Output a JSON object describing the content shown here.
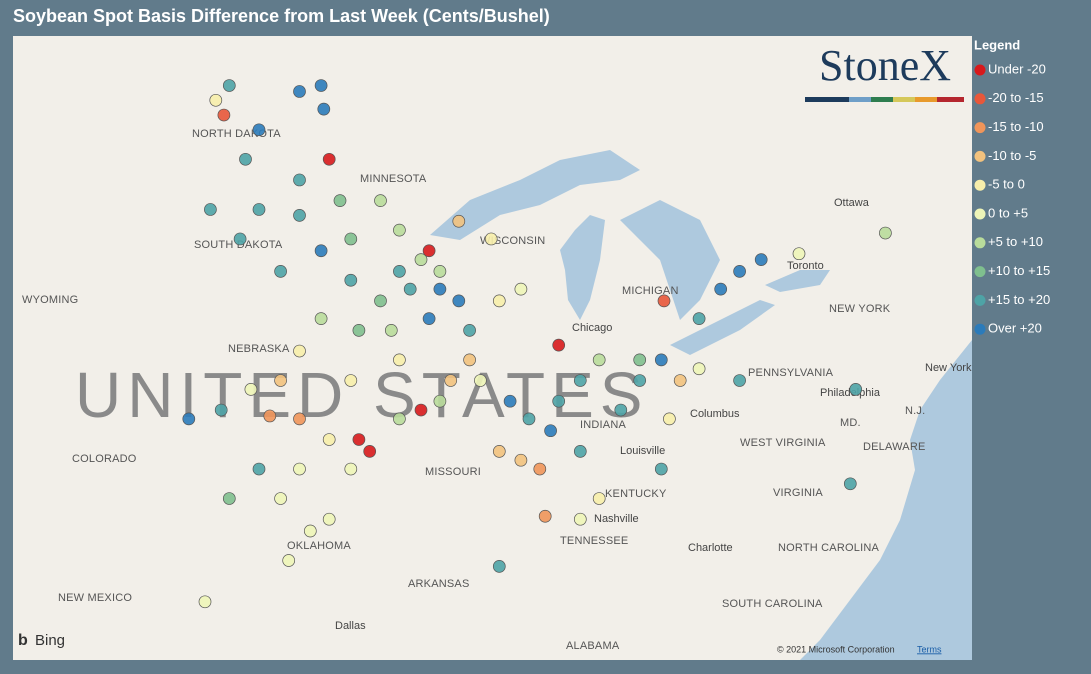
{
  "header": {
    "title": "Soybean Spot Basis Difference from Last Week (Cents/Bushel)"
  },
  "legend": {
    "title": "Legend",
    "items": [
      {
        "label": "Under -20",
        "color": "#d7191c"
      },
      {
        "label": "-20 to -15",
        "color": "#e8573a"
      },
      {
        "label": "-15 to -10",
        "color": "#f0955a"
      },
      {
        "label": "-10 to -5",
        "color": "#f2c27e"
      },
      {
        "label": "-5 to 0",
        "color": "#f7eeab"
      },
      {
        "label": "0 to +5",
        "color": "#eef5b8"
      },
      {
        "label": "+5 to +10",
        "color": "#b9dc9b"
      },
      {
        "label": "+10 to +15",
        "color": "#7fbf8e"
      },
      {
        "label": "+15 to +20",
        "color": "#4ea3a6"
      },
      {
        "label": "Over +20",
        "color": "#2b7bba"
      }
    ]
  },
  "map": {
    "country_label": "UNITED STATES",
    "place_labels": [
      "NORTH DAKOTA",
      "MINNESOTA",
      "SOUTH DAKOTA",
      "WISCONSIN",
      "MICHIGAN",
      "WYOMING",
      "NEBRASKA",
      "COLORADO",
      "MISSOURI",
      "KENTUCKY",
      "TENNESSEE",
      "ARKANSAS",
      "OKLAHOMA",
      "NEW MEXICO",
      "Dallas",
      "ALABAMA",
      "SOUTH CAROLINA",
      "NORTH CAROLINA",
      "VIRGINIA",
      "WEST VIRGINIA",
      "PENNSYLVANIA",
      "NEW YORK",
      "Ottawa",
      "Toronto",
      "Chicago",
      "Columbus",
      "Louisville",
      "Nashville",
      "Charlotte",
      "Philadelphia",
      "New York",
      "MD.",
      "N.J.",
      "DELAWARE",
      "INDIANA"
    ],
    "points": [
      [
        -101.1,
        51.1,
        8
      ],
      [
        -98.5,
        50.9,
        9
      ],
      [
        -97.7,
        51.1,
        9
      ],
      [
        -97.6,
        50.3,
        9
      ],
      [
        -100.0,
        49.6,
        9
      ],
      [
        -101.6,
        50.6,
        4
      ],
      [
        -101.3,
        50.1,
        1
      ],
      [
        -100.5,
        48.6,
        8
      ],
      [
        -98.5,
        47.9,
        8
      ],
      [
        -97.4,
        48.6,
        0
      ],
      [
        -97.0,
        47.2,
        7
      ],
      [
        -101.8,
        46.9,
        8
      ],
      [
        -100.0,
        46.9,
        8
      ],
      [
        -98.5,
        46.7,
        8
      ],
      [
        -100.7,
        45.9,
        8
      ],
      [
        -99.2,
        44.8,
        8
      ],
      [
        -97.7,
        45.5,
        9
      ],
      [
        -96.6,
        45.9,
        7
      ],
      [
        -95.5,
        47.2,
        6
      ],
      [
        -94.8,
        46.2,
        6
      ],
      [
        -94.0,
        45.2,
        6
      ],
      [
        -93.3,
        44.2,
        9
      ],
      [
        -92.6,
        43.8,
        9
      ],
      [
        -93.7,
        43.2,
        9
      ],
      [
        -92.2,
        42.8,
        8
      ],
      [
        -91.1,
        43.8,
        4
      ],
      [
        -90.3,
        44.2,
        5
      ],
      [
        -92.6,
        46.5,
        3
      ],
      [
        -91.4,
        45.9,
        4
      ],
      [
        -93.7,
        45.5,
        0
      ],
      [
        -95.5,
        43.8,
        7
      ],
      [
        -96.3,
        42.8,
        7
      ],
      [
        -97.7,
        43.2,
        6
      ],
      [
        -98.5,
        42.1,
        4
      ],
      [
        -99.2,
        41.1,
        3
      ],
      [
        -100.3,
        40.8,
        5
      ],
      [
        -101.4,
        40.1,
        8
      ],
      [
        -102.6,
        39.8,
        9
      ],
      [
        -99.6,
        39.9,
        2
      ],
      [
        -98.5,
        39.8,
        2
      ],
      [
        -97.4,
        39.1,
        4
      ],
      [
        -96.3,
        39.1,
        0
      ],
      [
        -95.9,
        38.7,
        0
      ],
      [
        -96.6,
        38.1,
        5
      ],
      [
        -98.5,
        38.1,
        5
      ],
      [
        -99.2,
        37.1,
        5
      ],
      [
        -100.0,
        38.1,
        8
      ],
      [
        -101.1,
        37.1,
        7
      ],
      [
        -98.1,
        36.0,
        5
      ],
      [
        -98.9,
        35.0,
        5
      ],
      [
        -97.4,
        36.4,
        5
      ],
      [
        -94.8,
        39.8,
        6
      ],
      [
        -94.0,
        40.1,
        0
      ],
      [
        -93.3,
        40.4,
        6
      ],
      [
        -91.8,
        41.1,
        5
      ],
      [
        -90.7,
        40.4,
        9
      ],
      [
        -90.0,
        39.8,
        8
      ],
      [
        -89.2,
        39.4,
        9
      ],
      [
        -88.9,
        40.4,
        8
      ],
      [
        -88.1,
        41.1,
        8
      ],
      [
        -90.3,
        38.4,
        3
      ],
      [
        -91.1,
        38.7,
        3
      ],
      [
        -89.6,
        38.1,
        2
      ],
      [
        -89.4,
        36.5,
        2
      ],
      [
        -88.1,
        36.4,
        5
      ],
      [
        -87.4,
        37.1,
        4
      ],
      [
        -88.1,
        38.7,
        8
      ],
      [
        -86.6,
        40.1,
        8
      ],
      [
        -85.9,
        41.1,
        8
      ],
      [
        -85.1,
        41.8,
        9
      ],
      [
        -84.4,
        41.1,
        3
      ],
      [
        -84.8,
        39.8,
        4
      ],
      [
        -83.7,
        41.5,
        5
      ],
      [
        -82.2,
        41.1,
        8
      ],
      [
        -82.9,
        44.2,
        9
      ],
      [
        -82.2,
        44.8,
        9
      ],
      [
        -81.4,
        45.2,
        9
      ],
      [
        -83.7,
        43.2,
        8
      ],
      [
        -85.0,
        43.8,
        1
      ],
      [
        -80.0,
        45.4,
        5
      ],
      [
        -76.8,
        46.1,
        6
      ],
      [
        -77.9,
        40.8,
        8
      ],
      [
        -78.1,
        37.6,
        8
      ],
      [
        -85.1,
        38.1,
        8
      ],
      [
        -91.1,
        34.8,
        8
      ],
      [
        -102.0,
        33.6,
        5
      ],
      [
        -85.9,
        41.8,
        7
      ],
      [
        -87.4,
        41.8,
        6
      ],
      [
        -88.9,
        42.3,
        0
      ],
      [
        -92.2,
        41.8,
        3
      ],
      [
        -92.9,
        41.1,
        3
      ],
      [
        -94.8,
        41.8,
        4
      ],
      [
        -96.6,
        41.1,
        4
      ],
      [
        -95.1,
        42.8,
        6
      ],
      [
        -94.4,
        44.2,
        8
      ],
      [
        -96.6,
        44.5,
        8
      ],
      [
        -94.8,
        44.8,
        8
      ],
      [
        -93.3,
        44.8,
        6
      ]
    ]
  },
  "logo": "StoneX",
  "attribution": {
    "provider": "Bing",
    "copyright": "© 2021 Microsoft Corporation",
    "terms": "Terms"
  }
}
